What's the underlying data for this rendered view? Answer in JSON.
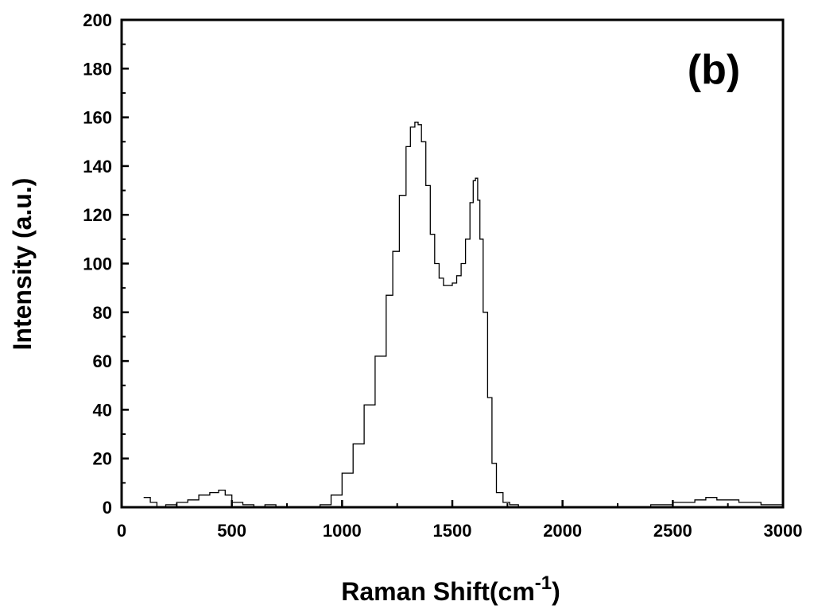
{
  "chart_data": {
    "type": "line",
    "title": "",
    "panel_label": "(b)",
    "xlabel": "Raman Shift(cm",
    "xlabel_superscript": "-1",
    "xlabel_suffix": ")",
    "ylabel": "Intensity (a.u.)",
    "xlim": [
      0,
      3000
    ],
    "ylim": [
      0,
      200
    ],
    "x_ticks": [
      0,
      500,
      1000,
      1500,
      2000,
      2500,
      3000
    ],
    "y_ticks": [
      0,
      20,
      40,
      60,
      80,
      100,
      120,
      140,
      160,
      180,
      200
    ],
    "grid": false,
    "legend": "none",
    "line_color": "#000000",
    "series": [
      {
        "x": [
          100,
          130,
          160,
          200,
          250,
          300,
          350,
          400,
          440,
          470,
          500,
          550,
          600,
          650,
          700,
          750,
          800,
          850,
          900,
          950,
          1000,
          1050,
          1100,
          1150,
          1200,
          1230,
          1260,
          1290,
          1310,
          1330,
          1345,
          1360,
          1380,
          1400,
          1420,
          1440,
          1460,
          1480,
          1500,
          1520,
          1540,
          1560,
          1580,
          1595,
          1605,
          1615,
          1625,
          1640,
          1660,
          1680,
          1700,
          1730,
          1760,
          1800,
          1850,
          1900,
          2000,
          2100,
          2200,
          2300,
          2400,
          2500,
          2600,
          2650,
          2700,
          2800,
          2900,
          3000
        ],
        "y": [
          4,
          2,
          0,
          1,
          2,
          3,
          5,
          6,
          7,
          5,
          2,
          1,
          0,
          1,
          0,
          0,
          0,
          0,
          1,
          5,
          14,
          26,
          42,
          62,
          87,
          105,
          128,
          148,
          156,
          158,
          157,
          150,
          132,
          112,
          100,
          94,
          91,
          91,
          92,
          95,
          100,
          110,
          125,
          134,
          135,
          126,
          110,
          80,
          45,
          18,
          6,
          2,
          1,
          0,
          0,
          0,
          0,
          0,
          0,
          0,
          1,
          2,
          3,
          4,
          3,
          2,
          1,
          0
        ]
      }
    ]
  }
}
